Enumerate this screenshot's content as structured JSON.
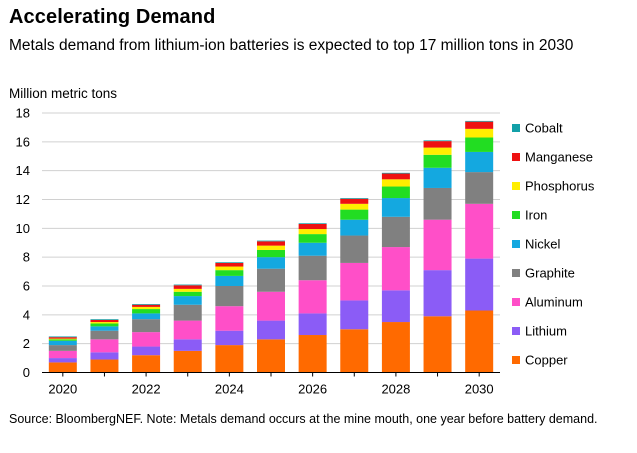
{
  "header": {
    "title": "Accelerating Demand",
    "subtitle": "Metals demand from lithium-ion batteries is expected to top 17 million tons in 2030",
    "unit_label": "Million metric tons"
  },
  "footer": {
    "source": "Source: BloombergNEF. Note: Metals demand occurs at the mine mouth, one year before battery demand."
  },
  "chart_data": {
    "type": "bar",
    "stacked": true,
    "categories": [
      "2020",
      "2021",
      "2022",
      "2023",
      "2024",
      "2025",
      "2026",
      "2027",
      "2028",
      "2029",
      "2030"
    ],
    "x_tick_labels": [
      "2020",
      "2022",
      "2024",
      "2026",
      "2028",
      "2030"
    ],
    "ylim": [
      0,
      18
    ],
    "yticks": [
      0,
      2,
      4,
      6,
      8,
      10,
      12,
      14,
      16,
      18
    ],
    "ylabel": "Million metric tons",
    "grid": true,
    "legend_position": "right",
    "series": [
      {
        "name": "Copper",
        "color": "#ff6a00",
        "values": [
          0.7,
          0.9,
          1.2,
          1.5,
          1.9,
          2.3,
          2.6,
          3.0,
          3.5,
          3.9,
          4.3
        ]
      },
      {
        "name": "Lithium",
        "color": "#8b5cf6",
        "values": [
          0.3,
          0.5,
          0.6,
          0.8,
          1.0,
          1.3,
          1.5,
          2.0,
          2.2,
          3.2,
          3.6
        ]
      },
      {
        "name": "Aluminum",
        "color": "#ff4fc8",
        "values": [
          0.5,
          0.9,
          1.0,
          1.3,
          1.7,
          2.0,
          2.3,
          2.6,
          3.0,
          3.5,
          3.8
        ]
      },
      {
        "name": "Graphite",
        "color": "#808080",
        "values": [
          0.4,
          0.6,
          0.9,
          1.1,
          1.4,
          1.6,
          1.7,
          1.9,
          2.1,
          2.2,
          2.2
        ]
      },
      {
        "name": "Nickel",
        "color": "#14a8e0",
        "values": [
          0.3,
          0.3,
          0.4,
          0.6,
          0.7,
          0.8,
          0.9,
          1.1,
          1.3,
          1.4,
          1.4
        ]
      },
      {
        "name": "Iron",
        "color": "#22dd22",
        "values": [
          0.1,
          0.2,
          0.3,
          0.3,
          0.4,
          0.5,
          0.6,
          0.7,
          0.8,
          0.9,
          1.0
        ]
      },
      {
        "name": "Phosphorus",
        "color": "#ffee00",
        "values": [
          0.05,
          0.1,
          0.15,
          0.2,
          0.25,
          0.3,
          0.35,
          0.4,
          0.5,
          0.5,
          0.6
        ]
      },
      {
        "name": "Manganese",
        "color": "#ee1111",
        "values": [
          0.1,
          0.15,
          0.15,
          0.25,
          0.25,
          0.3,
          0.35,
          0.35,
          0.4,
          0.45,
          0.5
        ]
      },
      {
        "name": "Cobalt",
        "color": "#12a0a8",
        "values": [
          0.05,
          0.05,
          0.05,
          0.05,
          0.05,
          0.05,
          0.05,
          0.05,
          0.05,
          0.05,
          0.05
        ]
      }
    ]
  }
}
